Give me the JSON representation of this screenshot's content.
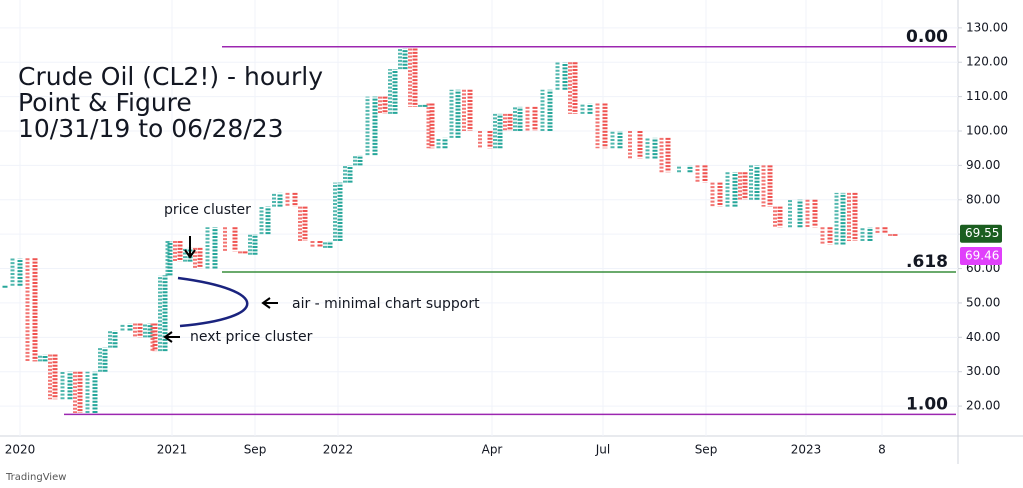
{
  "chart_data": {
    "type": "point-and-figure",
    "title": [
      "Crude Oil (CL2!) - hourly",
      "Point & Figure",
      "10/31/19 to 06/28/23"
    ],
    "annotations": [
      "price cluster",
      "air - minimal chart support",
      "next price cluster"
    ],
    "brand": "TradingView",
    "x": [
      5,
      20,
      35,
      45,
      55,
      70,
      80,
      95,
      105,
      115,
      130,
      140,
      150,
      155,
      165,
      170,
      180,
      190,
      200,
      215,
      235,
      245,
      255,
      268,
      280,
      295,
      305,
      320,
      330,
      340,
      350,
      360,
      375,
      385,
      395,
      405,
      415,
      425,
      432,
      445,
      458,
      470,
      490,
      500,
      510,
      520,
      535,
      550,
      565,
      575,
      590,
      605,
      620,
      640,
      655,
      668,
      690,
      705,
      720,
      735,
      745,
      757,
      770,
      780,
      800,
      815,
      830,
      843,
      855,
      870,
      885,
      895
    ],
    "values": [
      55,
      63,
      33,
      35,
      22,
      30,
      18,
      30,
      37,
      42,
      44,
      40,
      44,
      36,
      58,
      68,
      62,
      66,
      60,
      72,
      65,
      64,
      70,
      78,
      82,
      78,
      68,
      66,
      68,
      85,
      90,
      93,
      110,
      105,
      118,
      124,
      107,
      108,
      95,
      98,
      112,
      100,
      95,
      105,
      100,
      107,
      100,
      112,
      120,
      105,
      108,
      95,
      100,
      92,
      98,
      88,
      90,
      85,
      78,
      88,
      80,
      90,
      78,
      72,
      80,
      72,
      67,
      82,
      68,
      72,
      70,
      69.5
    ],
    "up_color": "#26a69a",
    "down_color": "#ef5350",
    "xlim": [
      0,
      958
    ],
    "xticks": [
      {
        "value": 20,
        "label": "2020"
      },
      {
        "value": 172,
        "label": "2021"
      },
      {
        "value": 255,
        "label": "Sep"
      },
      {
        "value": 338,
        "label": "2022"
      },
      {
        "value": 492,
        "label": "Apr"
      },
      {
        "value": 603,
        "label": "Jul"
      },
      {
        "value": 706,
        "label": "Sep"
      },
      {
        "value": 806,
        "label": "2023"
      },
      {
        "value": 882,
        "label": "8"
      }
    ],
    "ylim": [
      11.3,
      138.1
    ],
    "yticks": [
      {
        "value": 20,
        "label": "20.00"
      },
      {
        "value": 30,
        "label": "30.00"
      },
      {
        "value": 40,
        "label": "40.00"
      },
      {
        "value": 50,
        "label": "50.00"
      },
      {
        "value": 60,
        "label": "60.00"
      },
      {
        "value": 70,
        "label": "70.00"
      },
      {
        "value": 80,
        "label": "80.00"
      },
      {
        "value": 90,
        "label": "90.00"
      },
      {
        "value": 100,
        "label": "100.00"
      },
      {
        "value": 110,
        "label": "110.00"
      },
      {
        "value": 120,
        "label": "120.00"
      },
      {
        "value": 130,
        "label": "130.00"
      }
    ],
    "grid": true,
    "levels": [
      {
        "value": 124.5,
        "label": "0.00",
        "color": "#9c27b0"
      },
      {
        "value": 59,
        "label": ".618",
        "color": "#388e3c"
      },
      {
        "value": 17.6,
        "label": "1.00",
        "color": "#9c27b0"
      }
    ],
    "price_labels": [
      {
        "value": 69.55,
        "color": "#1b5e20"
      },
      {
        "value": 69.46,
        "color": "#e040fb"
      }
    ]
  }
}
